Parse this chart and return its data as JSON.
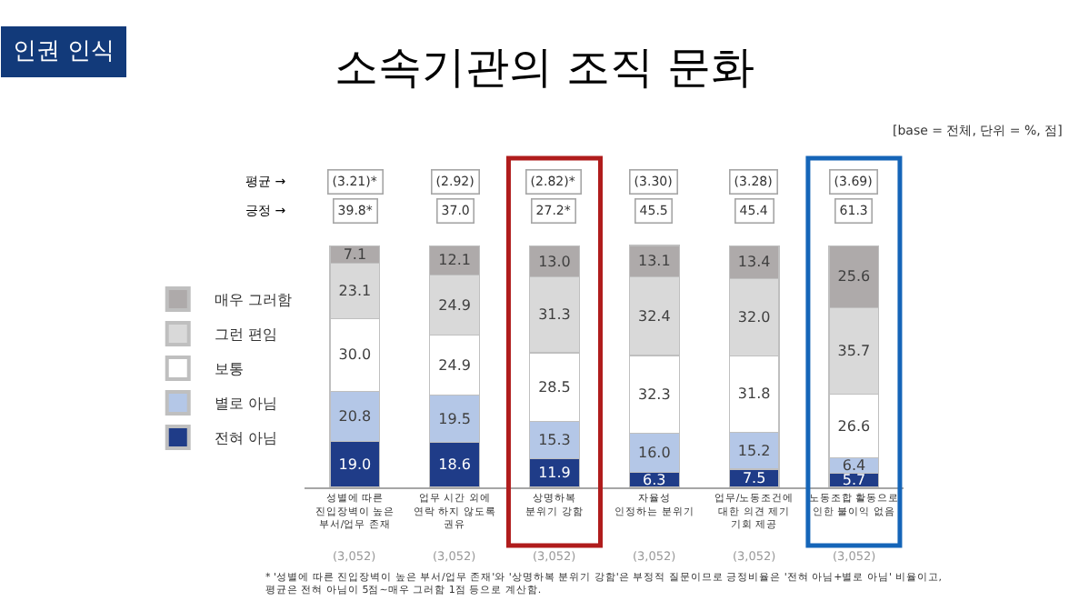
{
  "chart_data": {
    "type": "bar",
    "stacked": true,
    "title": "소속기관의 조직 문화",
    "categories": [
      "성별에 따른\n진입장벽이 높은\n부서/업무 존재",
      "업무 시간 외에\n연락 하지 않도록\n권유",
      "상명하복\n분위기 강함",
      "자율성\n인정하는 분위기",
      "업무/노동조건에\n대한 의견 제기\n기회 제공",
      "노동조합 활동으로\n인한 불이익 없음"
    ],
    "series": [
      {
        "name": "전혀 아님",
        "color": "#1f3c88",
        "values": [
          19.0,
          18.6,
          11.9,
          6.3,
          7.5,
          5.7
        ],
        "value_labels": [
          "19.0",
          "18.6",
          "11.9",
          "6.3",
          "7.5",
          "5.7"
        ]
      },
      {
        "name": "별로 아님",
        "color": "#b4c7e7",
        "values": [
          20.8,
          19.5,
          15.3,
          16.0,
          15.2,
          6.4
        ],
        "value_labels": [
          "20.8",
          "19.5",
          "15.3",
          "16.0",
          "15.2",
          "6.4"
        ]
      },
      {
        "name": "보통",
        "color": "#ffffff",
        "values": [
          30.0,
          24.9,
          28.5,
          32.3,
          31.8,
          26.6
        ],
        "value_labels": [
          "30.0",
          "24.9",
          "28.5",
          "32.3",
          "31.8",
          "26.6"
        ]
      },
      {
        "name": "그런 편임",
        "color": "#d9d9d9",
        "values": [
          23.1,
          24.9,
          31.3,
          32.4,
          32.0,
          35.7
        ],
        "value_labels": [
          "23.1",
          "24.9",
          "31.3",
          "32.4",
          "32.0",
          "35.7"
        ]
      },
      {
        "name": "매우 그러함",
        "color": "#aeaaaa",
        "values": [
          7.1,
          12.1,
          13.0,
          13.1,
          13.4,
          25.6
        ],
        "value_labels": [
          "7.1",
          "12.1",
          "13.0",
          "13.1",
          "13.4",
          "25.6"
        ]
      }
    ],
    "legend": "left",
    "tick_labels": "x",
    "annotations": [
      "인권 인식",
      "[base = 전체, 단위 = %, 점]",
      "평균 →",
      "(3.21)*",
      "(2.92)",
      "(2.82)*",
      "(3.30)",
      "(3.28)",
      "(3.69)",
      "긍정 →",
      "39.8*",
      "37.0",
      "27.2*",
      "45.5",
      "45.4",
      "61.3",
      "(3,052)",
      "(3,052)",
      "(3,052)",
      "(3,052)",
      "(3,052)",
      "(3,052)",
      "* '성별에 따른 진입장벽이 높은 부서/업무 존재'와 '상명하복 분위기 강함'은 부정적 질문이므로 긍정비율은 '전혀 아님+별로 아님' 비율이고,\n평균은 전혀 아님이 5점~매우 그러함 1점 등으로 계산함."
    ]
  }
}
